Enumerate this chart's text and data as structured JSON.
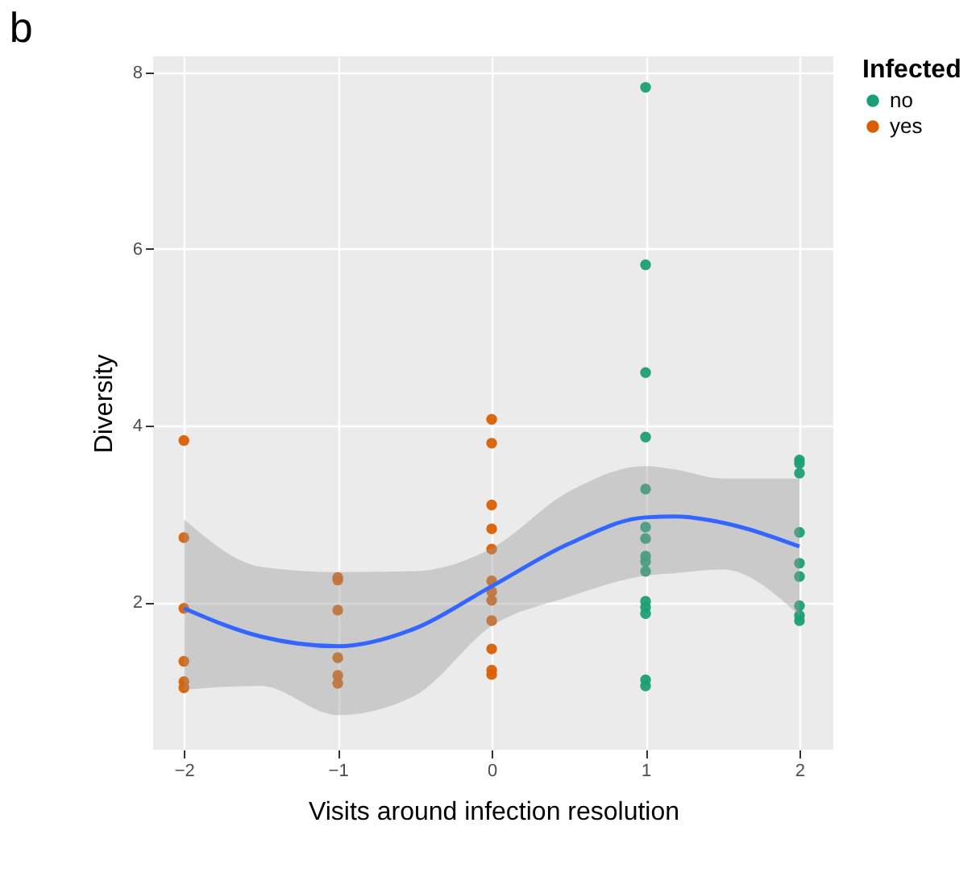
{
  "chart_data": {
    "type": "scatter",
    "title": "b",
    "xlabel": "Visits around infection resolution",
    "ylabel": "Diversity",
    "legend_title": "Infected",
    "legend": "right",
    "grid": true,
    "xlim": [
      -2.2,
      2.22
    ],
    "xticks": [
      {
        "value": -2,
        "label": "−2"
      },
      {
        "value": -1,
        "label": "−1"
      },
      0,
      1,
      2
    ],
    "ylim": [
      0.33,
      8.18
    ],
    "yticks": [
      2,
      4,
      6,
      8
    ],
    "series": [
      {
        "name": "no",
        "color": "#1b9e77",
        "marker": "circle",
        "x": [
          1,
          1,
          1,
          1,
          1,
          1,
          1,
          1,
          1,
          1,
          1,
          1,
          1,
          1,
          1,
          2,
          2,
          2,
          2,
          2,
          2,
          2,
          2,
          2
        ],
        "values": [
          7.83,
          5.82,
          4.6,
          3.87,
          3.28,
          2.85,
          2.72,
          2.52,
          2.46,
          2.35,
          2.01,
          1.94,
          1.87,
          1.12,
          1.05,
          3.61,
          3.57,
          3.46,
          2.79,
          2.44,
          2.29,
          1.96,
          1.85,
          1.79
        ]
      },
      {
        "name": "yes",
        "color": "#d95f02",
        "marker": "circle",
        "x": [
          -2,
          -2,
          -2,
          -2,
          -2,
          -2,
          -1,
          -1,
          -1,
          -1,
          -1,
          -1,
          0,
          0,
          0,
          0,
          0,
          0,
          0,
          0,
          0,
          0,
          0,
          0
        ],
        "values": [
          3.83,
          2.73,
          1.93,
          1.33,
          1.1,
          1.03,
          2.28,
          2.25,
          1.91,
          1.37,
          1.17,
          1.08,
          4.07,
          3.8,
          3.1,
          2.83,
          2.6,
          2.24,
          2.12,
          2.02,
          1.79,
          1.47,
          1.23,
          1.18
        ]
      },
      {
        "type": "line",
        "color": "#3366ff",
        "marker": "none",
        "line_style": "solid",
        "x": [
          -2,
          -1.5,
          -1,
          -0.5,
          0,
          0.5,
          1,
          1.2,
          1.5,
          2
        ],
        "values": [
          1.93,
          1.61,
          1.5,
          1.7,
          2.18,
          2.66,
          2.96,
          2.97,
          2.9,
          2.63
        ],
        "lower": [
          1.01,
          1.05,
          0.72,
          0.94,
          1.73,
          2.06,
          2.3,
          2.33,
          2.37,
          1.85
        ],
        "upper": [
          2.94,
          2.4,
          2.34,
          2.35,
          2.61,
          3.25,
          3.54,
          3.5,
          3.4,
          3.4
        ]
      }
    ]
  }
}
